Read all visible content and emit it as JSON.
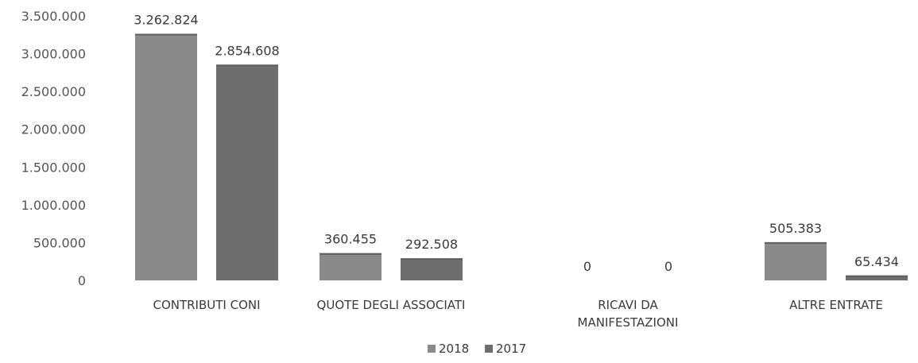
{
  "chart_data": {
    "type": "bar",
    "categories": [
      [
        "CONTRIBUTI CONI"
      ],
      [
        "QUOTE DEGLI ASSOCIATI"
      ],
      [
        "RICAVI DA",
        "MANIFESTAZIONI"
      ],
      [
        "ALTRE ENTRATE"
      ]
    ],
    "series": [
      {
        "name": "2018",
        "values": [
          3262824,
          360455,
          0,
          505383
        ],
        "labels": [
          "3.262.824",
          "360.455",
          "0",
          "505.383"
        ],
        "color": "#8a8a8a"
      },
      {
        "name": "2017",
        "values": [
          2854608,
          292508,
          0,
          65434
        ],
        "labels": [
          "2.854.608",
          "292.508",
          "0",
          "65.434"
        ],
        "color": "#6e6e6e"
      }
    ],
    "y_ticks": [
      {
        "value": 0,
        "label": "0"
      },
      {
        "value": 500000,
        "label": "500.000"
      },
      {
        "value": 1000000,
        "label": "1.000.000"
      },
      {
        "value": 1500000,
        "label": "1.500.000"
      },
      {
        "value": 2000000,
        "label": "2.000.000"
      },
      {
        "value": 2500000,
        "label": "2.500.000"
      },
      {
        "value": 3000000,
        "label": "3.000.000"
      },
      {
        "value": 3500000,
        "label": "3.500.000"
      }
    ],
    "ylim": [
      0,
      3500000
    ],
    "title": "",
    "xlabel": "",
    "ylabel": "",
    "grid": false,
    "legend": "bottom-center"
  }
}
